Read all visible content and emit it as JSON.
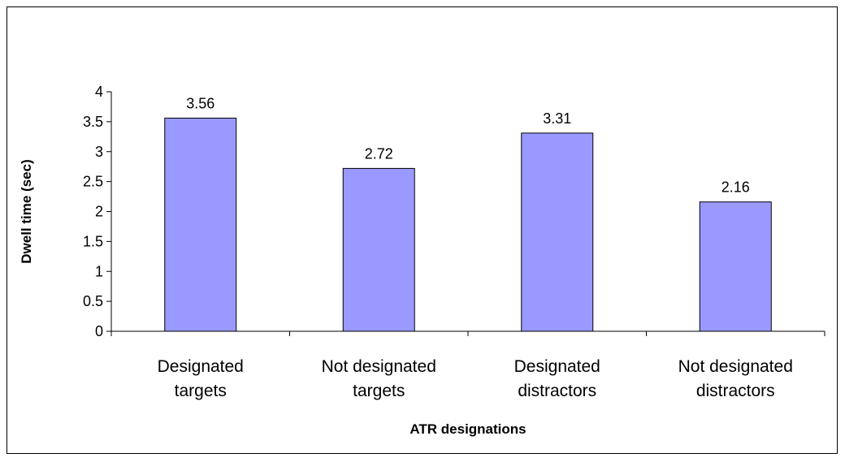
{
  "chart_data": {
    "type": "bar",
    "categories": [
      [
        "Designated",
        "targets"
      ],
      [
        "Not designated",
        "targets"
      ],
      [
        "Designated",
        "distractors"
      ],
      [
        "Not designated",
        "distractors"
      ]
    ],
    "values": [
      3.56,
      2.72,
      3.31,
      2.16
    ],
    "data_labels": [
      "3.56",
      "2.72",
      "3.31",
      "2.16"
    ],
    "xlabel": "ATR designations",
    "ylabel": "Dwell time (sec)",
    "ylim": [
      0,
      4
    ],
    "yticks": [
      "0",
      "0.5",
      "1",
      "1.5",
      "2",
      "2.5",
      "3",
      "3.5",
      "4"
    ],
    "grid": false,
    "legend": "none",
    "bar_color": "#9999ff"
  }
}
